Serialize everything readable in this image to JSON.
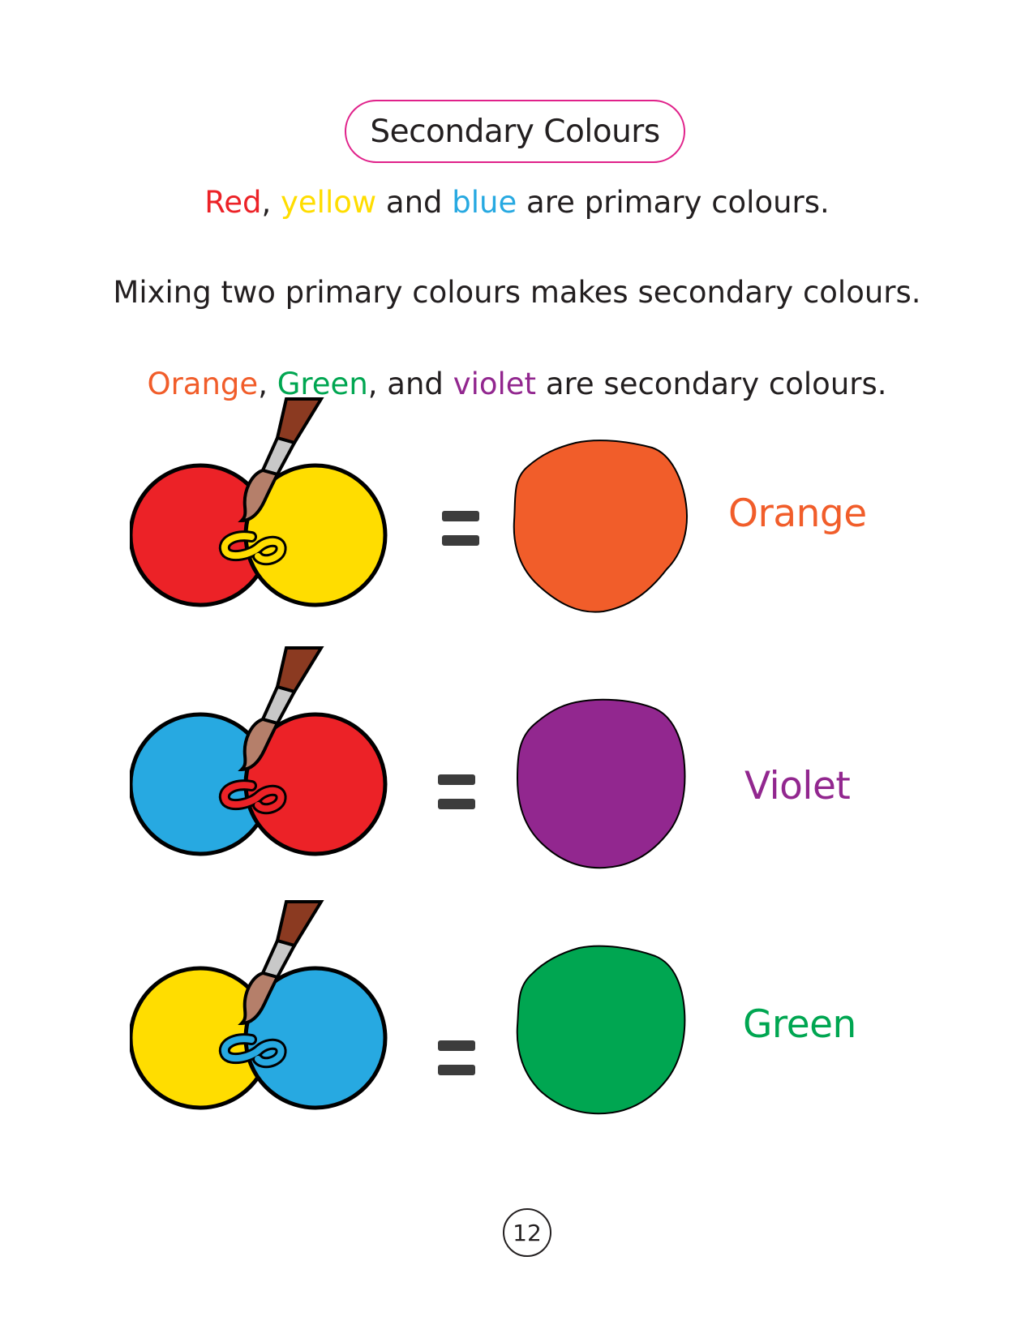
{
  "title": "Secondary Colours",
  "colors": {
    "red": "#ec2227",
    "yellow": "#ffdd00",
    "blue": "#27a9e1",
    "orange": "#f15d2a",
    "green": "#00a651",
    "violet": "#92278f",
    "text": "#231f20",
    "pill_border": "#e0218a",
    "brush_handle": "#8b3a21",
    "brush_ferrule": "#c8c8c8",
    "brush_bristles": "#b57f6a"
  },
  "line1": {
    "red": "Red",
    "sep1": ", ",
    "yellow": "yellow",
    "and": " and ",
    "blue": "blue",
    "rest": " are primary colours."
  },
  "line2": "Mixing two primary colours makes secondary colours.",
  "line3": {
    "orange": "Orange",
    "sep1": ", ",
    "green": "Green",
    "sep2": ", and ",
    "violet": "violet",
    "rest": " are secondary colours."
  },
  "mixes": [
    {
      "left": "red",
      "right": "yellow",
      "result": "orange",
      "label": "Orange"
    },
    {
      "left": "blue",
      "right": "red",
      "result": "violet",
      "label": "Violet"
    },
    {
      "left": "yellow",
      "right": "blue",
      "result": "green",
      "label": "Green"
    }
  ],
  "page_number": "12"
}
